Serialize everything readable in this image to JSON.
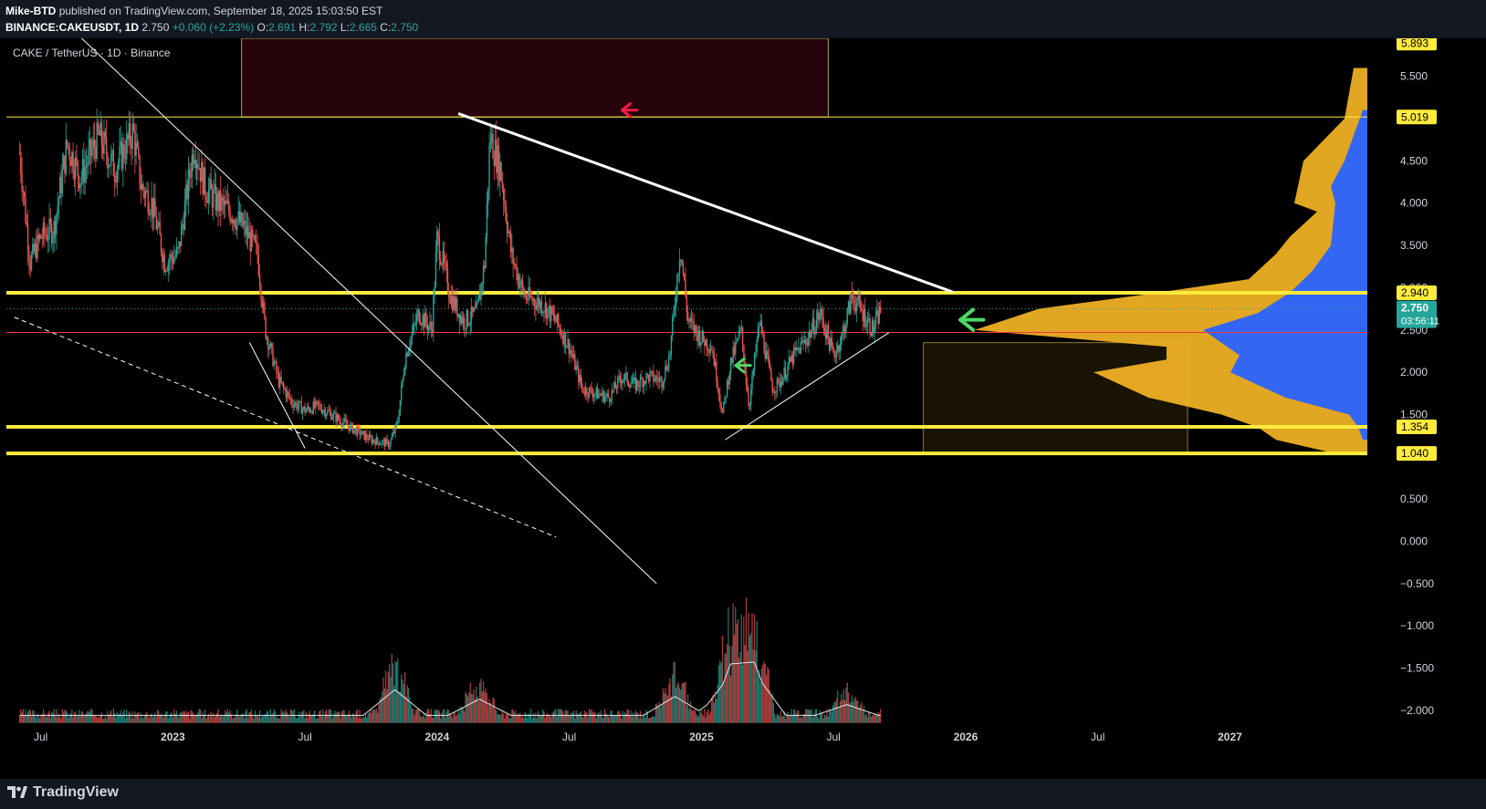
{
  "header": {
    "publisher": "Mike-BTD",
    "published_text": "published on TradingView.com, September 18, 2025 15:03:50 EST",
    "symbol": "BINANCE:CAKEUSDT, 1D",
    "last": "2.750",
    "change": "+0.060 (+2.23%)",
    "ohlc": [
      {
        "label": "O:",
        "value": "2.691"
      },
      {
        "label": "H:",
        "value": "2.792"
      },
      {
        "label": "L:",
        "value": "2.665"
      },
      {
        "label": "C:",
        "value": "2.750"
      }
    ]
  },
  "footer": {
    "brand": "TradingView"
  },
  "colors": {
    "up": "#26a69a",
    "down": "#ef5350",
    "yellow": "#ffeb3b",
    "red_line": "#f23645",
    "profile_yellow": "#f9b826",
    "profile_blue": "#2962ff",
    "current_price": "#26a69a",
    "bg": "#000000",
    "axis_text": "#d1d4dc"
  },
  "chart_data": {
    "type": "candlestick",
    "title": "CAKE / TetherUS · 1D · Binance",
    "x_ticks": [
      "Jul",
      "2023",
      "Jul",
      "2024",
      "Jul",
      "2025",
      "Jul",
      "2026",
      "Jul",
      "2027"
    ],
    "y_ticks": [
      "5.500",
      "5.000",
      "4.500",
      "4.000",
      "3.500",
      "3.000",
      "2.500",
      "2.000",
      "1.500",
      "1.000",
      "0.500",
      "0.000",
      "−0.500",
      "−1.000",
      "−1.500",
      "−2.000"
    ],
    "ylim": [
      -2.25,
      5.95
    ],
    "price_labels": [
      {
        "value": 5.893,
        "text": "5.893",
        "type": "level"
      },
      {
        "value": 5.019,
        "text": "5.019",
        "type": "level"
      },
      {
        "value": 2.94,
        "text": "2.940",
        "type": "level"
      },
      {
        "value": 2.75,
        "text": "2.750",
        "countdown": "03:56:11",
        "type": "current"
      },
      {
        "value": 1.354,
        "text": "1.354",
        "type": "level"
      },
      {
        "value": 1.04,
        "text": "1.040",
        "type": "level"
      }
    ],
    "horizontal_levels": [
      {
        "value": 2.94,
        "color": "yellow",
        "thick": true
      },
      {
        "value": 2.47,
        "color": "red",
        "thick": false
      },
      {
        "value": 1.354,
        "color": "yellow",
        "thick": true
      },
      {
        "value": 1.04,
        "color": "yellow",
        "thick": true
      },
      {
        "value": 5.019,
        "color": "yellow",
        "thick": false
      }
    ],
    "price_path": [
      [
        2022.42,
        4.6
      ],
      [
        2022.46,
        3.3
      ],
      [
        2022.5,
        3.6
      ],
      [
        2022.55,
        3.7
      ],
      [
        2022.6,
        4.7
      ],
      [
        2022.65,
        4.3
      ],
      [
        2022.72,
        4.8
      ],
      [
        2022.78,
        4.4
      ],
      [
        2022.85,
        4.85
      ],
      [
        2022.88,
        4.2
      ],
      [
        2022.92,
        4.0
      ],
      [
        2022.97,
        3.3
      ],
      [
        2023.02,
        3.4
      ],
      [
        2023.08,
        4.7
      ],
      [
        2023.12,
        4.2
      ],
      [
        2023.17,
        4.0
      ],
      [
        2023.22,
        3.9
      ],
      [
        2023.27,
        3.7
      ],
      [
        2023.32,
        3.4
      ],
      [
        2023.35,
        2.5
      ],
      [
        2023.4,
        1.9
      ],
      [
        2023.45,
        1.65
      ],
      [
        2023.5,
        1.55
      ],
      [
        2023.55,
        1.6
      ],
      [
        2023.6,
        1.5
      ],
      [
        2023.67,
        1.35
      ],
      [
        2023.75,
        1.2
      ],
      [
        2023.82,
        1.15
      ],
      [
        2023.85,
        1.4
      ],
      [
        2023.88,
        2.2
      ],
      [
        2023.93,
        2.7
      ],
      [
        2023.98,
        2.5
      ],
      [
        2024.0,
        3.6
      ],
      [
        2024.05,
        2.9
      ],
      [
        2024.1,
        2.6
      ],
      [
        2024.15,
        2.7
      ],
      [
        2024.18,
        3.3
      ],
      [
        2024.2,
        4.8
      ],
      [
        2024.24,
        4.4
      ],
      [
        2024.28,
        3.4
      ],
      [
        2024.33,
        2.9
      ],
      [
        2024.4,
        2.8
      ],
      [
        2024.45,
        2.6
      ],
      [
        2024.5,
        2.3
      ],
      [
        2024.55,
        1.8
      ],
      [
        2024.6,
        1.75
      ],
      [
        2024.65,
        1.7
      ],
      [
        2024.7,
        1.95
      ],
      [
        2024.75,
        1.85
      ],
      [
        2024.8,
        1.95
      ],
      [
        2024.85,
        1.9
      ],
      [
        2024.88,
        2.2
      ],
      [
        2024.92,
        3.5
      ],
      [
        2024.95,
        2.6
      ],
      [
        2025.0,
        2.4
      ],
      [
        2025.04,
        2.3
      ],
      [
        2025.08,
        1.5
      ],
      [
        2025.11,
        2.1
      ],
      [
        2025.15,
        2.5
      ],
      [
        2025.18,
        1.6
      ],
      [
        2025.22,
        2.6
      ],
      [
        2025.27,
        1.8
      ],
      [
        2025.3,
        1.9
      ],
      [
        2025.35,
        2.2
      ],
      [
        2025.4,
        2.4
      ],
      [
        2025.45,
        2.7
      ],
      [
        2025.5,
        2.2
      ],
      [
        2025.53,
        2.4
      ],
      [
        2025.57,
        2.9
      ],
      [
        2025.61,
        2.7
      ],
      [
        2025.65,
        2.5
      ],
      [
        2025.68,
        2.75
      ]
    ],
    "trendlines": [
      {
        "from": [
          2022.52,
          6.35
        ],
        "to": [
          2024.83,
          -0.5
        ],
        "style": "solid",
        "width": 1
      },
      {
        "from": [
          2022.4,
          2.65
        ],
        "to": [
          2024.45,
          0.05
        ],
        "style": "dashed",
        "width": 1
      },
      {
        "from": [
          2024.08,
          5.06
        ],
        "to": [
          2025.95,
          2.95
        ],
        "style": "solid",
        "width": 3
      },
      {
        "from": [
          2025.09,
          1.2
        ],
        "to": [
          2025.71,
          2.47
        ],
        "style": "solid",
        "width": 1
      },
      {
        "from": [
          2023.29,
          2.35
        ],
        "to": [
          2023.5,
          1.1
        ],
        "style": "solid",
        "width": 1
      }
    ],
    "zones": [
      {
        "x0": 2023.26,
        "x1": 2025.48,
        "y0": 5.019,
        "y1": 5.95,
        "color": "#ff1744",
        "opacity": 0.15
      },
      {
        "x0": 2025.84,
        "x1": 2026.84,
        "y0": 1.04,
        "y1": 2.35,
        "color": "#f9b826",
        "opacity": 0.1
      }
    ],
    "volume_profile": {
      "yellow": [
        [
          5.6,
          15
        ],
        [
          5.0,
          25
        ],
        [
          4.5,
          70
        ],
        [
          4.0,
          80
        ],
        [
          3.9,
          55
        ],
        [
          3.6,
          85
        ],
        [
          3.4,
          100
        ],
        [
          3.1,
          130
        ],
        [
          2.94,
          230
        ],
        [
          2.75,
          360
        ],
        [
          2.5,
          430
        ],
        [
          2.3,
          220
        ],
        [
          2.15,
          220
        ],
        [
          2.0,
          300
        ],
        [
          1.7,
          240
        ],
        [
          1.5,
          160
        ],
        [
          1.35,
          120
        ],
        [
          1.2,
          100
        ],
        [
          1.05,
          40
        ]
      ],
      "blue": [
        [
          5.1,
          5
        ],
        [
          4.5,
          25
        ],
        [
          4.2,
          40
        ],
        [
          4.0,
          35
        ],
        [
          3.5,
          40
        ],
        [
          3.2,
          60
        ],
        [
          2.94,
          85
        ],
        [
          2.7,
          120
        ],
        [
          2.5,
          180
        ],
        [
          2.2,
          140
        ],
        [
          2.0,
          150
        ],
        [
          1.7,
          90
        ],
        [
          1.5,
          20
        ],
        [
          1.35,
          10
        ],
        [
          1.2,
          5
        ]
      ]
    },
    "volume": {
      "baseline": -2.15,
      "peaks": [
        [
          2023.84,
          0.95
        ],
        [
          2024.16,
          0.6
        ],
        [
          2024.9,
          0.7
        ],
        [
          2025.11,
          1.5
        ],
        [
          2025.2,
          1.6
        ],
        [
          2025.55,
          0.4
        ]
      ]
    },
    "annotations": [
      {
        "type": "arrow",
        "x": 2024.7,
        "y": 5.1,
        "color": "#ff1744"
      },
      {
        "type": "arrow",
        "x": 2025.13,
        "y": 2.08,
        "color": "#4cd964"
      },
      {
        "type": "arrow",
        "x": 2025.98,
        "y": 2.62,
        "color": "#4cd964"
      }
    ]
  }
}
